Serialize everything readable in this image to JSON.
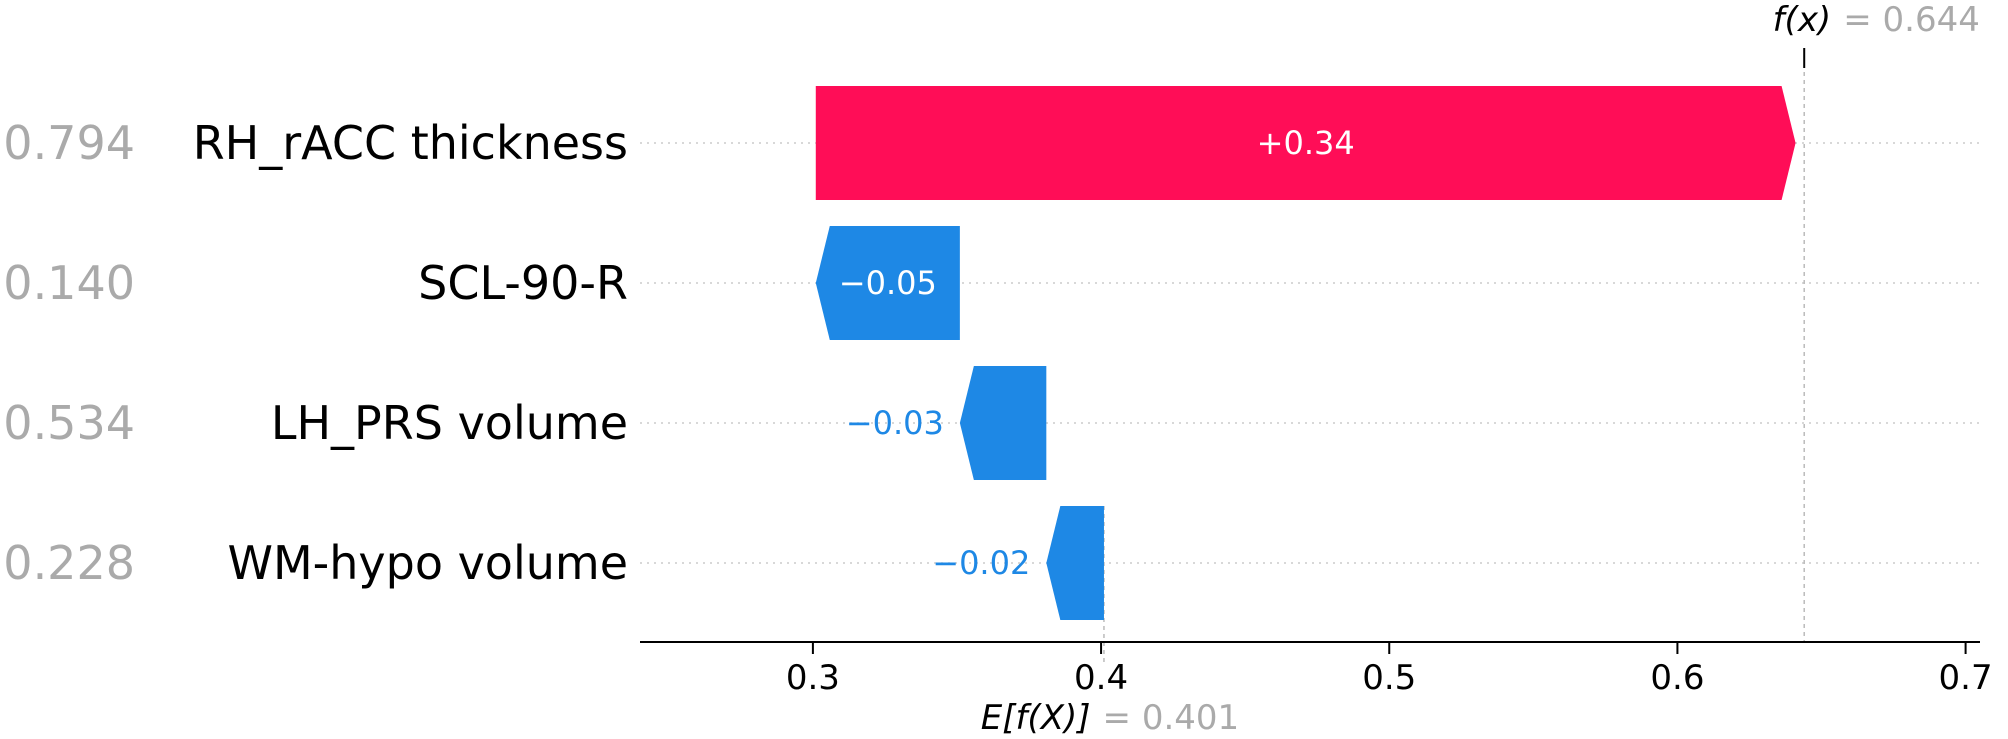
{
  "chart_data": {
    "type": "waterfall",
    "features": [
      {
        "name": "RH_rACC thickness",
        "feature_value": "0.794",
        "contribution": 0.34,
        "label": "+0.34"
      },
      {
        "name": "SCL-90-R",
        "feature_value": "0.140",
        "contribution": -0.05,
        "label": "−0.05"
      },
      {
        "name": "LH_PRS volume",
        "feature_value": "0.534",
        "contribution": -0.03,
        "label": "−0.03"
      },
      {
        "name": "WM-hypo volume",
        "feature_value": "0.228",
        "contribution": -0.02,
        "label": "−0.02"
      }
    ],
    "base_value": 0.401,
    "base_label": "E[f(X)]",
    "base_value_text": "= 0.401",
    "output_value": 0.644,
    "output_label": "f(x)",
    "output_value_text": "= 0.644",
    "xlim": [
      0.24,
      0.705
    ],
    "xticks": [
      0.3,
      0.4,
      0.5,
      0.6,
      0.7
    ],
    "xtick_labels": [
      "0.3",
      "0.4",
      "0.5",
      "0.6",
      "0.7"
    ],
    "colors": {
      "positive": "#ff0d57",
      "negative": "#1e88e5",
      "feature_value_text": "#aaaaaa",
      "feature_name_text": "#000000",
      "gridline": "#cccccc"
    }
  }
}
